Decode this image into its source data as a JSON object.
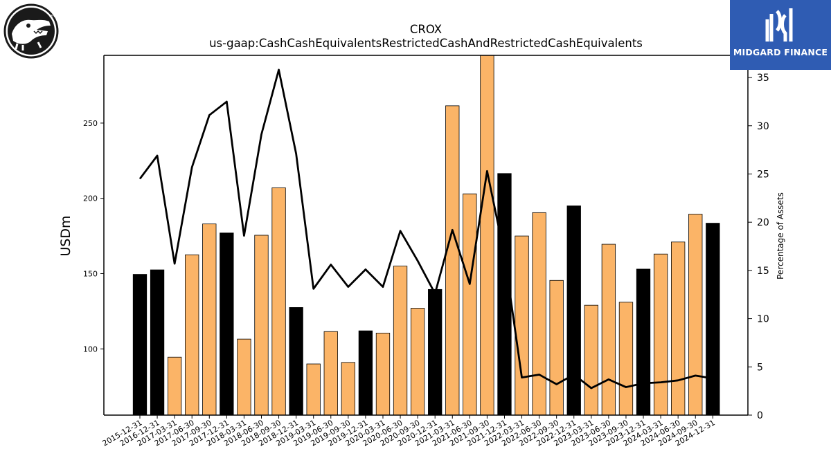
{
  "chart_data": {
    "type": "bar",
    "title": "CROX",
    "subtitle": "us-gaap:CashCashEquivalentsRestrictedCashAndRestrictedCashEquivalents",
    "ylabel_left": "USDm",
    "ylabel_right": "Percentage of Assets",
    "ylim_left": [
      56,
      295
    ],
    "ylim_right": [
      0,
      37.3
    ],
    "yticks_left": [
      100,
      150,
      200,
      250
    ],
    "yticks_right": [
      0,
      5,
      10,
      15,
      20,
      25,
      30,
      35
    ],
    "categories": [
      "2015-12-31",
      "2016-12-31",
      "2017-03-31",
      "2017-06-30",
      "2017-09-30",
      "2017-12-31",
      "2018-03-31",
      "2018-06-30",
      "2018-09-30",
      "2018-12-31",
      "2019-03-31",
      "2019-06-30",
      "2019-09-30",
      "2019-12-31",
      "2020-03-31",
      "2020-06-30",
      "2020-09-30",
      "2020-12-31",
      "2021-03-31",
      "2021-06-30",
      "2021-09-30",
      "2021-12-31",
      "2022-03-31",
      "2022-06-30",
      "2022-09-30",
      "2022-12-31",
      "2023-03-31",
      "2023-06-30",
      "2023-09-30",
      "2023-12-31",
      "2024-03-31",
      "2024-06-30",
      "2024-09-30",
      "2024-12-31"
    ],
    "series": [
      {
        "kind": "bar",
        "values": [
          149.5,
          152.5,
          94.5,
          162.5,
          183,
          177,
          106.5,
          175.5,
          207,
          127.5,
          90,
          111.5,
          91,
          112,
          110.5,
          155,
          127,
          139.5,
          261.5,
          203,
          296,
          216.5,
          175,
          190.5,
          145.5,
          195,
          129,
          169.5,
          131,
          153,
          163,
          171,
          189.5,
          183.5
        ],
        "colors": [
          "#000000",
          "#000000",
          "#fbb467",
          "#fbb467",
          "#fbb467",
          "#000000",
          "#fbb467",
          "#fbb467",
          "#fbb467",
          "#000000",
          "#fbb467",
          "#fbb467",
          "#fbb467",
          "#000000",
          "#fbb467",
          "#fbb467",
          "#fbb467",
          "#000000",
          "#fbb467",
          "#fbb467",
          "#fbb467",
          "#000000",
          "#fbb467",
          "#fbb467",
          "#fbb467",
          "#000000",
          "#fbb467",
          "#fbb467",
          "#fbb467",
          "#000000",
          "#fbb467",
          "#fbb467",
          "#fbb467",
          "#000000"
        ]
      },
      {
        "kind": "line",
        "axis": "right",
        "color": "#000000",
        "values": [
          24.5,
          26.9,
          15.7,
          25.7,
          31.1,
          32.5,
          18.6,
          29.1,
          35.8,
          27.1,
          13.1,
          15.6,
          13.3,
          15.1,
          13.3,
          19.1,
          16.0,
          12.6,
          19.2,
          13.6,
          25.3,
          16.6,
          3.9,
          4.2,
          3.2,
          4.2,
          2.8,
          3.7,
          2.9,
          3.3,
          3.4,
          3.6,
          4.1,
          3.8
        ]
      }
    ]
  },
  "branding": {
    "right_logo_text": "MIDGARD FINANCE"
  }
}
